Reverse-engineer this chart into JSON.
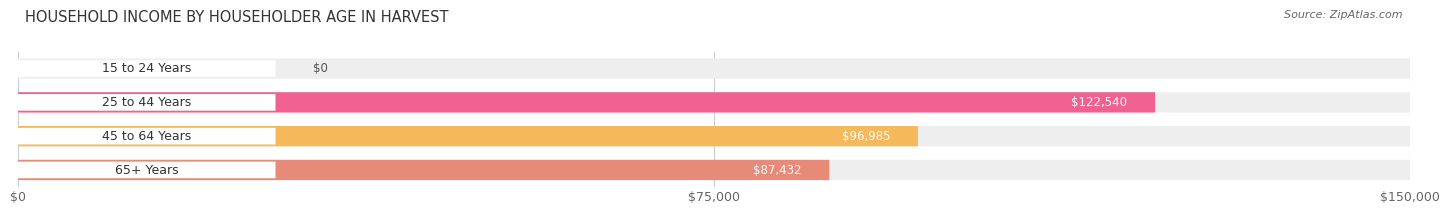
{
  "title": "HOUSEHOLD INCOME BY HOUSEHOLDER AGE IN HARVEST",
  "source": "Source: ZipAtlas.com",
  "categories": [
    "15 to 24 Years",
    "25 to 44 Years",
    "45 to 64 Years",
    "65+ Years"
  ],
  "values": [
    0,
    122540,
    96985,
    87432
  ],
  "bar_colors": [
    "#b0b0e0",
    "#f06090",
    "#f5b85a",
    "#e88a78"
  ],
  "bar_bg_color": "#eeeeee",
  "value_labels": [
    "$0",
    "$122,540",
    "$96,985",
    "$87,432"
  ],
  "xmax": 150000,
  "xticks": [
    0,
    75000,
    150000
  ],
  "xtick_labels": [
    "$0",
    "$75,000",
    "$150,000"
  ],
  "title_fontsize": 10.5,
  "label_fontsize": 9,
  "value_fontsize": 8.5,
  "bar_height": 0.6,
  "background_color": "#ffffff"
}
